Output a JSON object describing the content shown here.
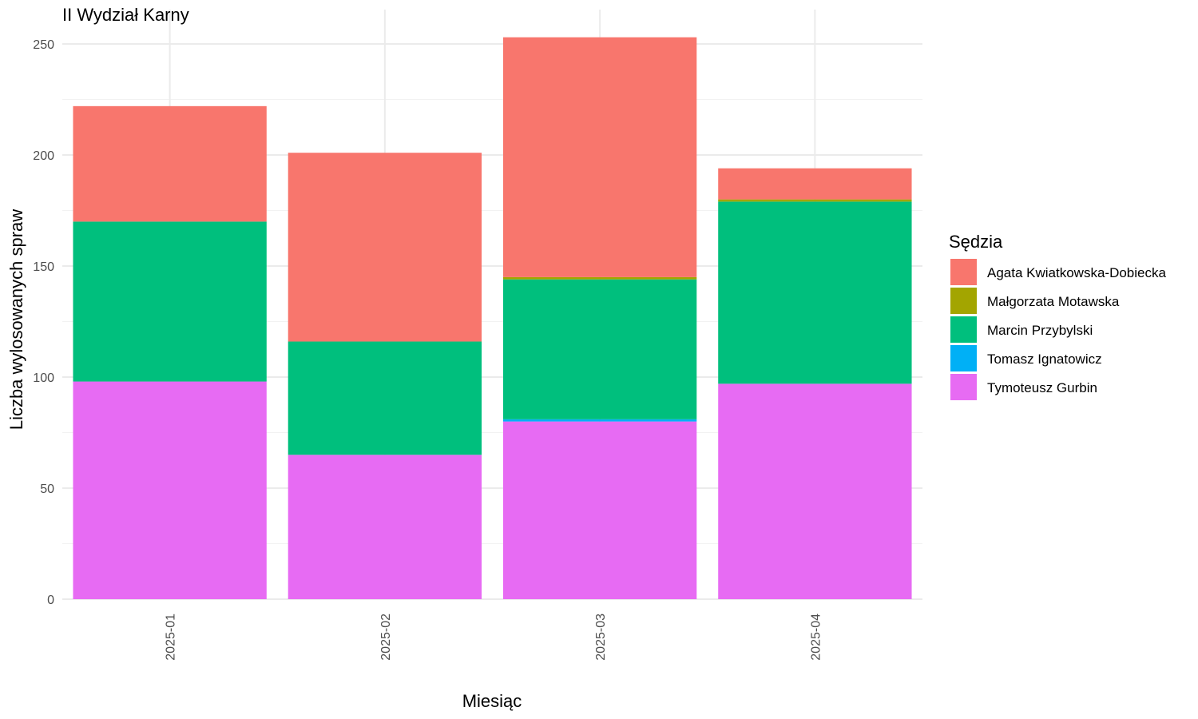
{
  "chart_data": {
    "type": "bar",
    "stacked": true,
    "title": "II Wydział Karny",
    "xlabel": "Miesiąc",
    "ylabel": "Liczba wylosowanych spraw",
    "categories": [
      "2025-01",
      "2025-02",
      "2025-03",
      "2025-04"
    ],
    "ylim": [
      0,
      260
    ],
    "yticks": [
      0,
      50,
      100,
      150,
      200,
      250
    ],
    "grid": true,
    "legend_title": "Sędzia",
    "legend_position": "right",
    "series": [
      {
        "name": "Tymoteusz Gurbin",
        "color": "#E76BF3",
        "values": [
          98,
          65,
          80,
          97
        ]
      },
      {
        "name": "Tomasz Ignatowicz",
        "color": "#00B0F6",
        "values": [
          0,
          0,
          1,
          0
        ]
      },
      {
        "name": "Marcin Przybylski",
        "color": "#00BF7D",
        "values": [
          72,
          51,
          63,
          82
        ]
      },
      {
        "name": "Małgorzata Motawska",
        "color": "#A3A500",
        "values": [
          0,
          0,
          1,
          1
        ]
      },
      {
        "name": "Agata Kwiatkowska-Dobiecka",
        "color": "#F8766D",
        "values": [
          52,
          85,
          108,
          14
        ]
      }
    ],
    "legend_order": [
      "Agata Kwiatkowska-Dobiecka",
      "Małgorzata Motawska",
      "Marcin Przybylski",
      "Tomasz Ignatowicz",
      "Tymoteusz Gurbin"
    ]
  }
}
